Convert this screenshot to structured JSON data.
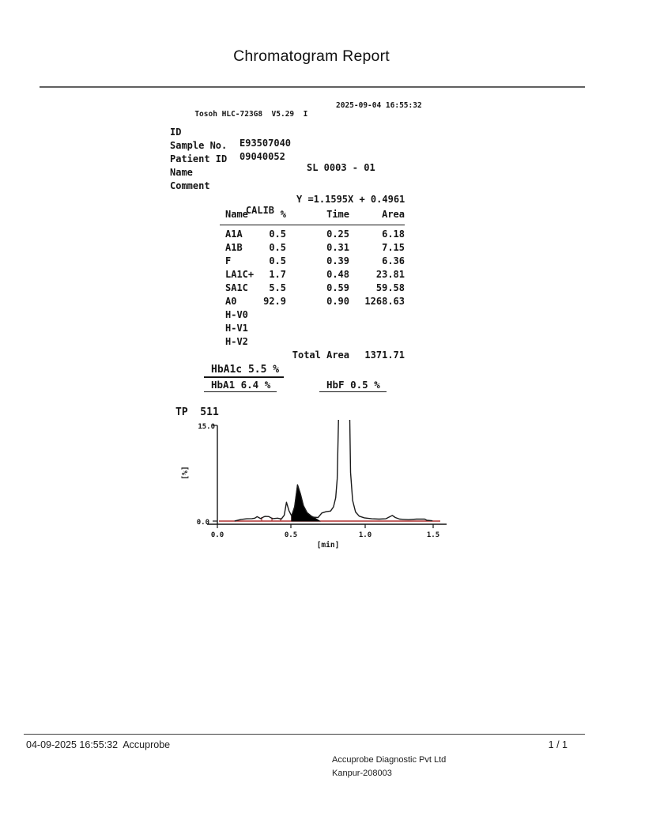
{
  "title": "Chromatogram Report",
  "device": {
    "model_line": "Tosoh HLC-723G8  V5.29  I",
    "datetime": "2025-09-04 16:55:32",
    "fields": [
      {
        "label": "ID",
        "value": "E93507040",
        "extra": ""
      },
      {
        "label": "Sample No.",
        "value": "09040052",
        "extra": "SL 0003 - 01"
      },
      {
        "label": "Patient ID",
        "value": "",
        "extra": ""
      },
      {
        "label": "Name",
        "value": "",
        "extra": ""
      },
      {
        "label": "Comment",
        "value": "",
        "extra": ""
      }
    ]
  },
  "calib": {
    "label": "CALIB",
    "formula": "Y =1.1595X + 0.4961",
    "columns": [
      "Name",
      "%",
      "Time",
      "Area"
    ],
    "rows": [
      {
        "name": "A1A",
        "pct": "0.5",
        "time": "0.25",
        "area": "6.18"
      },
      {
        "name": "A1B",
        "pct": "0.5",
        "time": "0.31",
        "area": "7.15"
      },
      {
        "name": "F",
        "pct": "0.5",
        "time": "0.39",
        "area": "6.36"
      },
      {
        "name": "LA1C+",
        "pct": "1.7",
        "time": "0.48",
        "area": "23.81"
      },
      {
        "name": "SA1C",
        "pct": "5.5",
        "time": "0.59",
        "area": "59.58"
      },
      {
        "name": "A0",
        "pct": "92.9",
        "time": "0.90",
        "area": "1268.63"
      },
      {
        "name": "H-V0",
        "pct": "",
        "time": "",
        "area": ""
      },
      {
        "name": "H-V1",
        "pct": "",
        "time": "",
        "area": ""
      },
      {
        "name": "H-V2",
        "pct": "",
        "time": "",
        "area": ""
      }
    ],
    "total_label": "Total Area",
    "total_value": "1371.71"
  },
  "results": {
    "hba1c": "HbA1c 5.5 %",
    "hba1": "HbA1 6.4 %",
    "hbf": "HbF 0.5 %"
  },
  "chart": {
    "title_label": "TP  511",
    "ytick_top": "15.0",
    "ytick_bottom": "0.0",
    "xtick_labels": [
      "0.0",
      "0.5",
      "1.0",
      "1.5"
    ],
    "xlabel": "[min]",
    "ylabel": "[%]"
  },
  "colors": {
    "baseline_red": "#b03030",
    "curve_black": "#1a1a1a"
  },
  "chart_data": {
    "type": "line",
    "title": "TP 511",
    "xlabel": "[min]",
    "ylabel": "[%]",
    "xlim": [
      0,
      1.57
    ],
    "ylim": [
      0,
      15
    ],
    "xticks": [
      0.0,
      0.5,
      1.0,
      1.5
    ],
    "yticks": [
      0.0,
      15.0
    ],
    "peaks": [
      {
        "name": "A1A",
        "pct": 0.5,
        "time": 0.25,
        "area": 6.18
      },
      {
        "name": "A1B",
        "pct": 0.5,
        "time": 0.31,
        "area": 7.15
      },
      {
        "name": "F",
        "pct": 0.5,
        "time": 0.39,
        "area": 6.36
      },
      {
        "name": "LA1C+",
        "pct": 1.7,
        "time": 0.48,
        "area": 23.81
      },
      {
        "name": "SA1C",
        "pct": 5.5,
        "time": 0.59,
        "area": 59.58
      },
      {
        "name": "A0",
        "pct": 92.9,
        "time": 0.9,
        "area": 1268.63
      }
    ],
    "total_area": 1371.71,
    "series": [
      {
        "name": "chromatogram",
        "points": [
          [
            0.12,
            0.02
          ],
          [
            0.16,
            0.25
          ],
          [
            0.2,
            0.35
          ],
          [
            0.235,
            0.38
          ],
          [
            0.255,
            0.45
          ],
          [
            0.27,
            0.68
          ],
          [
            0.285,
            0.5
          ],
          [
            0.295,
            0.38
          ],
          [
            0.315,
            0.65
          ],
          [
            0.325,
            0.72
          ],
          [
            0.35,
            0.7
          ],
          [
            0.365,
            0.5
          ],
          [
            0.375,
            0.38
          ],
          [
            0.41,
            0.45
          ],
          [
            0.435,
            0.32
          ],
          [
            0.455,
            0.9
          ],
          [
            0.47,
            2.9
          ],
          [
            0.487,
            1.6
          ],
          [
            0.505,
            0.8
          ],
          [
            0.525,
            2.2
          ],
          [
            0.545,
            5.6
          ],
          [
            0.565,
            4.2
          ],
          [
            0.585,
            2.4
          ],
          [
            0.61,
            1.3
          ],
          [
            0.64,
            0.75
          ],
          [
            0.655,
            0.6
          ],
          [
            0.685,
            0.55
          ],
          [
            0.71,
            1.25
          ],
          [
            0.74,
            1.45
          ],
          [
            0.77,
            1.55
          ],
          [
            0.79,
            2.2
          ],
          [
            0.805,
            3.6
          ],
          [
            0.815,
            6.5
          ],
          [
            0.825,
            16.5
          ],
          [
            0.9,
            16.5
          ],
          [
            0.906,
            7.5
          ],
          [
            0.92,
            3.2
          ],
          [
            0.94,
            1.4
          ],
          [
            0.965,
            0.75
          ],
          [
            1.0,
            0.5
          ],
          [
            1.05,
            0.35
          ],
          [
            1.1,
            0.3
          ],
          [
            1.145,
            0.35
          ],
          [
            1.175,
            0.7
          ],
          [
            1.19,
            0.88
          ],
          [
            1.21,
            0.55
          ],
          [
            1.24,
            0.3
          ],
          [
            1.3,
            0.22
          ],
          [
            1.355,
            0.3
          ],
          [
            1.41,
            0.3
          ],
          [
            1.425,
            0.12
          ],
          [
            1.46,
            0.05
          ]
        ]
      }
    ],
    "fill_region": [
      [
        0.505,
        0
      ],
      [
        0.505,
        0.8
      ],
      [
        0.525,
        2.2
      ],
      [
        0.545,
        5.6
      ],
      [
        0.565,
        4.2
      ],
      [
        0.585,
        2.4
      ],
      [
        0.61,
        1.3
      ],
      [
        0.64,
        0.75
      ],
      [
        0.665,
        0.45
      ],
      [
        0.69,
        0.08
      ],
      [
        0.695,
        0
      ]
    ],
    "delimiters": [
      [
        0.301,
        0.6
      ],
      [
        0.371,
        0.55
      ],
      [
        0.43,
        0.45
      ],
      [
        0.505,
        0.85
      ],
      [
        0.656,
        0.5
      ]
    ],
    "baseline_y": 0,
    "grid": false,
    "legend": "none"
  },
  "footer": {
    "timestamp": "04-09-2025 16:55:32",
    "app": "Accuprobe",
    "page": "1 / 1",
    "company": "Accuprobe Diagnostic Pvt Ltd",
    "address": "Kanpur-208003"
  }
}
